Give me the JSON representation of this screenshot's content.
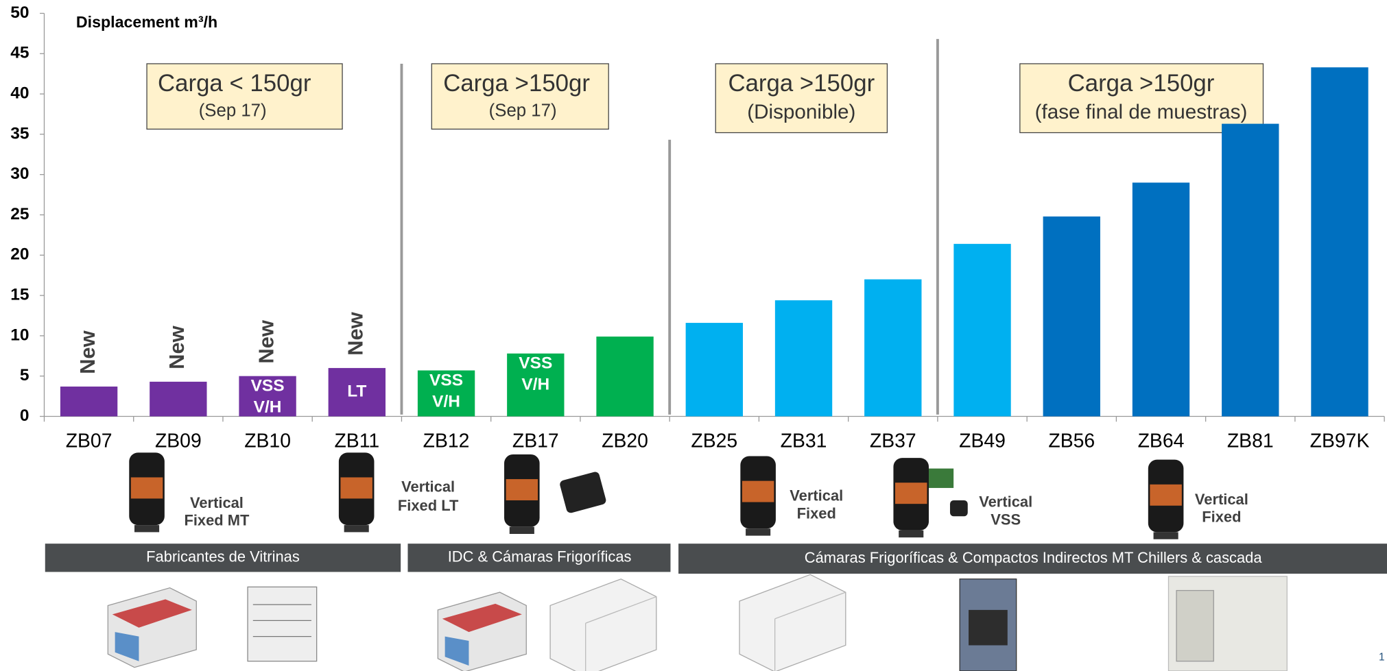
{
  "chart_data": {
    "type": "bar",
    "y_axis_title": "Displacement m³/h",
    "categories": [
      "ZB07",
      "ZB09",
      "ZB10",
      "ZB11",
      "ZB12",
      "ZB17",
      "ZB20",
      "ZB25",
      "ZB31",
      "ZB37",
      "ZB49",
      "ZB56",
      "ZB64",
      "ZB81",
      "ZB97K"
    ],
    "values": [
      3.7,
      4.3,
      5.0,
      6.0,
      5.7,
      7.8,
      9.9,
      11.6,
      14.4,
      17.0,
      21.4,
      24.8,
      29.0,
      36.3,
      43.3
    ],
    "colors": [
      "#7030a0",
      "#7030a0",
      "#7030a0",
      "#7030a0",
      "#00b050",
      "#00b050",
      "#00b050",
      "#00b0f0",
      "#00b0f0",
      "#00b0f0",
      "#00b0f0",
      "#0070c0",
      "#0070c0",
      "#0070c0",
      "#0070c0"
    ],
    "ylim": [
      0,
      50
    ],
    "yticks": [
      0,
      5,
      10,
      15,
      20,
      25,
      30,
      35,
      40,
      45,
      50
    ],
    "new_labels": [
      {
        "category": "ZB07",
        "text": "New"
      },
      {
        "category": "ZB09",
        "text": "New"
      },
      {
        "category": "ZB10",
        "text": "New"
      },
      {
        "category": "ZB11",
        "text": "New"
      }
    ],
    "inner_labels": [
      {
        "category": "ZB10",
        "lines": [
          "VSS",
          "V/H"
        ]
      },
      {
        "category": "ZB11",
        "lines": [
          "LT"
        ]
      },
      {
        "category": "ZB12",
        "lines": [
          "VSS",
          "V/H"
        ]
      },
      {
        "category": "ZB17",
        "lines": [
          "VSS",
          "V/H"
        ]
      }
    ]
  },
  "annotations": [
    {
      "title": "Carga < 150gr",
      "subtitle": "(Sep 17)"
    },
    {
      "title": "Carga >150gr",
      "subtitle": "(Sep 17)"
    },
    {
      "title": "Carga >150gr",
      "subtitle": "(Disponible)"
    },
    {
      "title": "Carga >150gr",
      "subtitle": "(fase final de muestras)"
    }
  ],
  "compressors": [
    {
      "lines": [
        "Vertical",
        "Fixed MT"
      ]
    },
    {
      "lines": [
        "Vertical",
        "Fixed LT"
      ]
    },
    {
      "lines": [
        "Vertical",
        "Fixed"
      ]
    },
    {
      "lines": [
        "Vertical",
        "VSS"
      ]
    },
    {
      "lines": [
        "Vertical",
        "Fixed"
      ]
    }
  ],
  "segments": [
    "Fabricantes de Vitrinas",
    "IDC & Cámaras Frigoríficas",
    "Cámaras Frigoríficas & Compactos Indirectos MT Chillers & cascada"
  ],
  "page_number": "1"
}
